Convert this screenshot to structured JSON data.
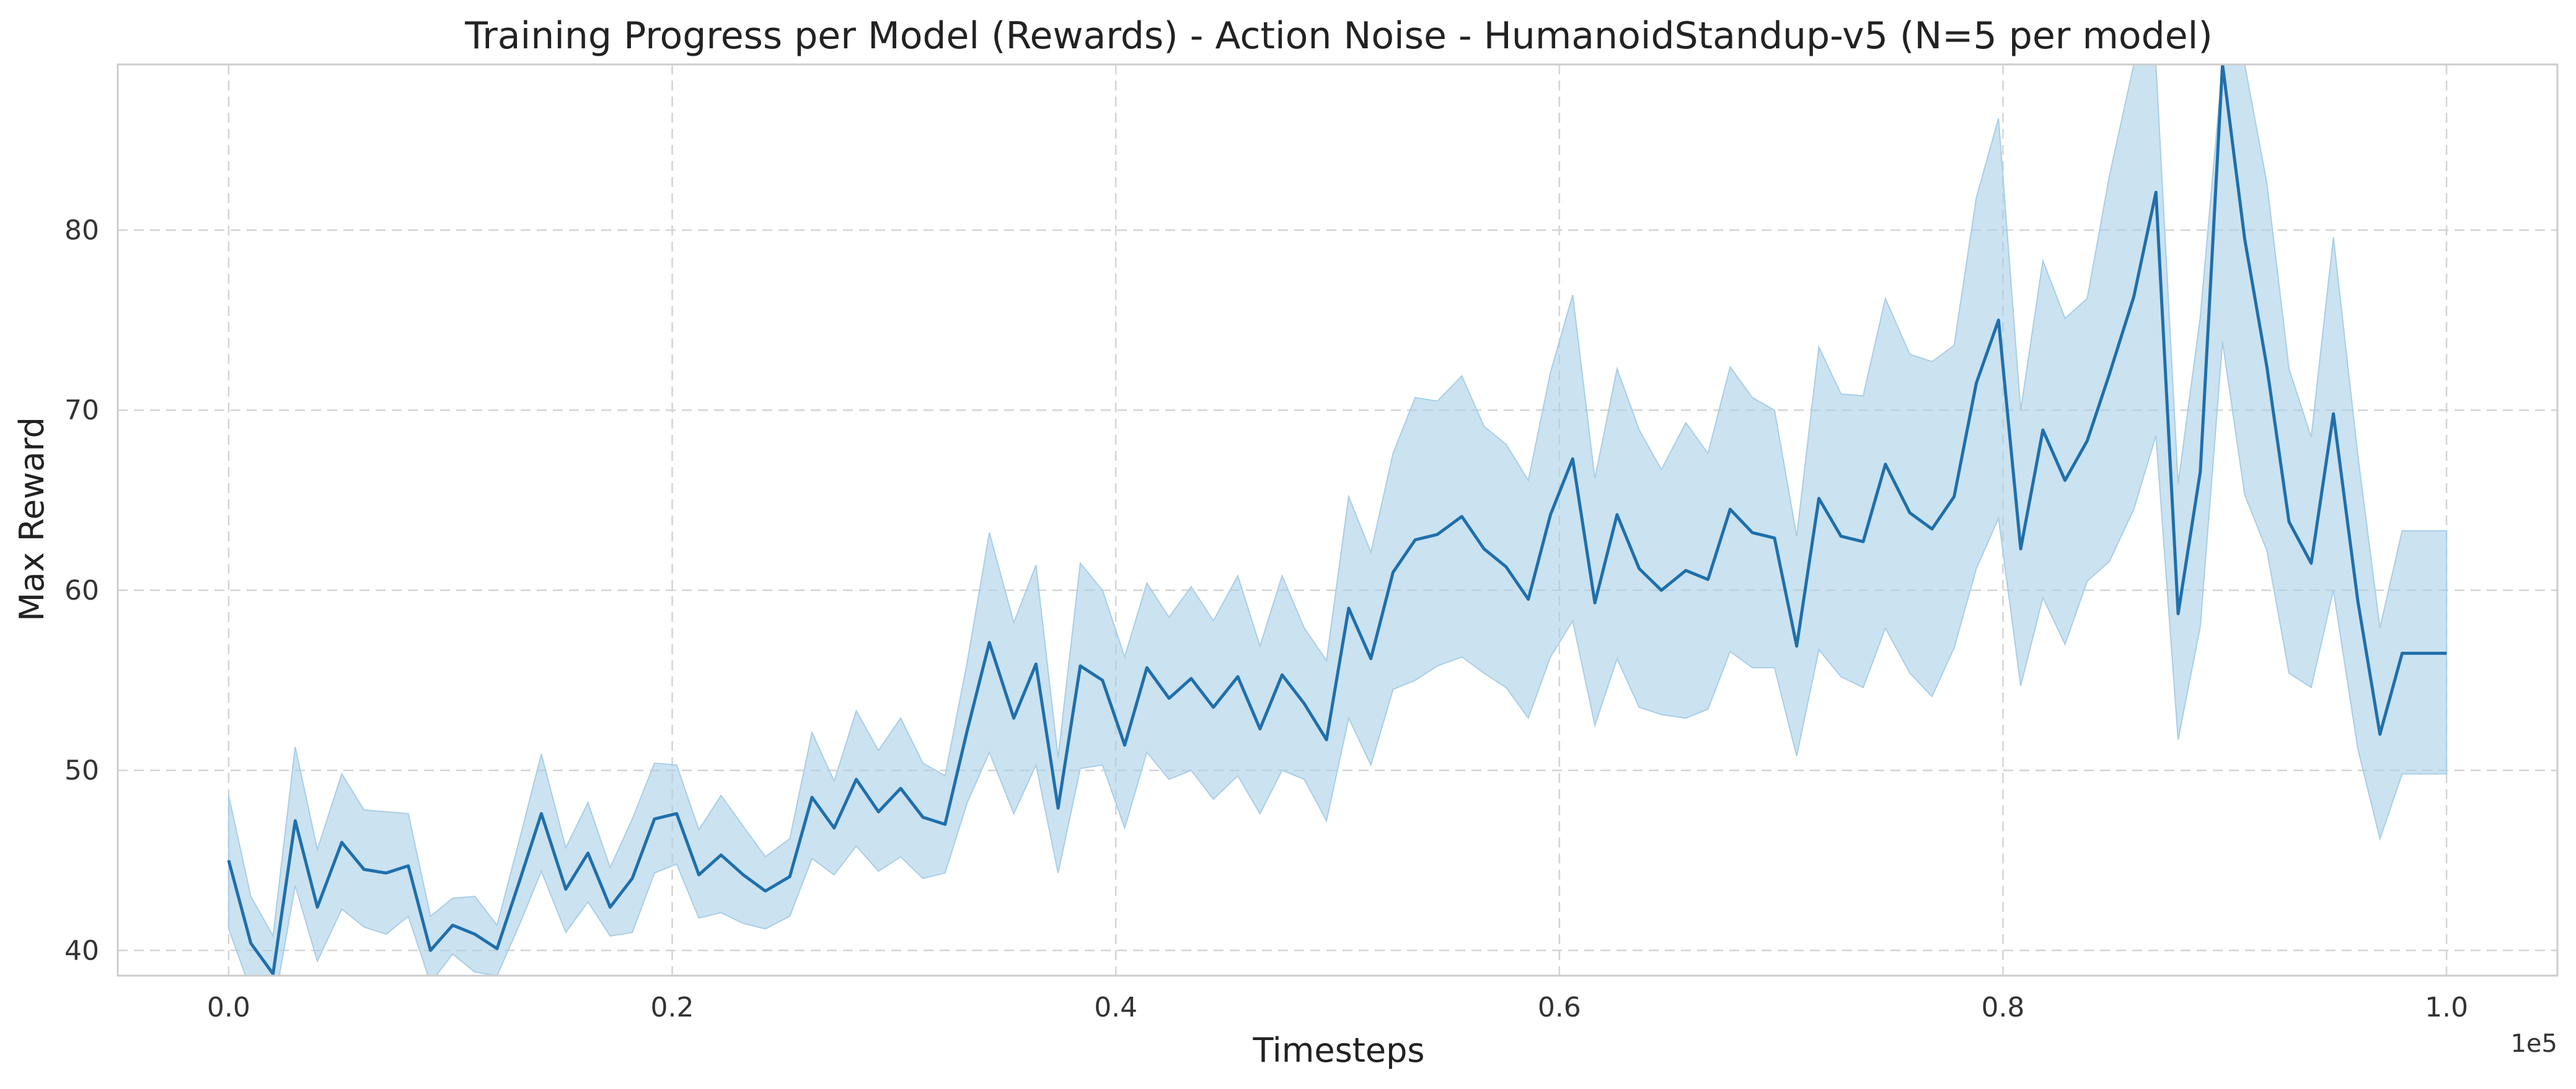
{
  "chart_data": {
    "type": "line",
    "title": "Training Progress per Model (Rewards) - Action Noise - HumanoidStandup-v5 (N=5 per model)",
    "xlabel": "Timesteps",
    "ylabel": "Max Reward",
    "x_offset_label": "1e5",
    "xlim": [
      -0.05,
      1.05
    ],
    "ylim": [
      38.6,
      89.2
    ],
    "x_ticks": [
      0.0,
      0.2,
      0.4,
      0.6,
      0.8,
      1.0
    ],
    "x_tick_labels": [
      "0.0",
      "0.2",
      "0.4",
      "0.6",
      "0.8",
      "1.0"
    ],
    "y_ticks": [
      40,
      50,
      60,
      70,
      80
    ],
    "y_tick_labels": [
      "40",
      "50",
      "60",
      "70",
      "80"
    ],
    "grid": true,
    "line_color": "#1f6fab",
    "band_color": "#a9cee6",
    "series": [
      {
        "x": [
          0.0,
          0.01,
          0.02,
          0.03,
          0.04,
          0.051,
          0.061,
          0.071,
          0.081,
          0.091,
          0.101,
          0.111,
          0.121,
          0.131,
          0.141,
          0.152,
          0.162,
          0.172,
          0.182,
          0.192,
          0.202,
          0.212,
          0.222,
          0.232,
          0.242,
          0.253,
          0.263,
          0.273,
          0.283,
          0.293,
          0.303,
          0.313,
          0.323,
          0.333,
          0.343,
          0.354,
          0.364,
          0.374,
          0.384,
          0.394,
          0.404,
          0.414,
          0.424,
          0.434,
          0.444,
          0.455,
          0.465,
          0.475,
          0.485,
          0.495,
          0.505,
          0.515,
          0.525,
          0.535,
          0.545,
          0.556,
          0.566,
          0.576,
          0.586,
          0.596,
          0.606,
          0.616,
          0.626,
          0.636,
          0.646,
          0.657,
          0.667,
          0.677,
          0.687,
          0.697,
          0.707,
          0.717,
          0.727,
          0.737,
          0.747,
          0.758,
          0.768,
          0.778,
          0.788,
          0.798,
          0.808,
          0.818,
          0.828,
          0.838,
          0.848,
          0.859,
          0.869,
          0.879,
          0.889,
          0.899,
          0.909,
          0.919,
          0.929,
          0.939,
          0.949,
          0.96,
          0.97,
          0.98,
          0.99,
          1.0
        ],
        "mean": [
          45.0,
          40.4,
          38.7,
          47.2,
          42.4,
          46.0,
          44.5,
          44.3,
          44.7,
          40.0,
          41.4,
          40.9,
          40.1,
          43.8,
          47.6,
          43.4,
          45.4,
          42.4,
          44.0,
          47.3,
          47.6,
          44.2,
          45.3,
          44.2,
          43.3,
          44.1,
          48.5,
          46.8,
          49.5,
          47.7,
          49.0,
          47.4,
          47.0,
          52.2,
          57.1,
          52.9,
          55.9,
          47.9,
          55.8,
          55.0,
          51.4,
          55.7,
          54.0,
          55.1,
          53.5,
          55.2,
          52.3,
          55.3,
          53.7,
          51.7,
          59.0,
          56.2,
          61.0,
          62.8,
          63.1,
          64.1,
          62.3,
          61.3,
          59.5,
          64.2,
          67.3,
          59.3,
          64.2,
          61.2,
          60.0,
          61.1,
          60.6,
          64.5,
          63.2,
          62.9,
          56.9,
          65.1,
          63.0,
          62.7,
          67.0,
          64.3,
          63.4,
          65.2,
          71.5,
          75.0,
          62.3,
          68.9,
          66.1,
          68.3,
          72.0,
          76.3,
          82.1,
          58.7,
          66.6,
          89.2,
          79.5,
          72.4,
          63.8,
          61.5,
          69.8,
          59.4,
          52.0,
          56.5,
          56.5,
          56.5
        ],
        "upper": [
          48.6,
          43.0,
          40.8,
          51.3,
          45.6,
          49.8,
          47.8,
          47.7,
          47.6,
          41.9,
          42.9,
          43.0,
          41.4,
          46.1,
          50.9,
          45.7,
          48.2,
          44.6,
          47.3,
          50.4,
          50.3,
          46.7,
          48.6,
          46.9,
          45.2,
          46.2,
          52.1,
          49.4,
          53.3,
          51.1,
          52.9,
          50.4,
          49.7,
          56.0,
          63.2,
          58.2,
          61.4,
          50.7,
          61.5,
          60.0,
          56.3,
          60.4,
          58.5,
          60.2,
          58.3,
          60.8,
          56.9,
          60.8,
          57.9,
          56.1,
          65.2,
          62.1,
          67.6,
          70.7,
          70.5,
          71.9,
          69.1,
          68.1,
          66.1,
          72.1,
          76.4,
          66.2,
          72.3,
          68.9,
          66.7,
          69.3,
          67.6,
          72.4,
          70.7,
          70.0,
          63.0,
          73.5,
          70.9,
          70.8,
          76.2,
          73.1,
          72.7,
          73.6,
          81.8,
          86.2,
          70.0,
          78.3,
          75.1,
          76.2,
          83.0,
          89.2,
          89.2,
          65.9,
          75.2,
          89.2,
          89.2,
          82.6,
          72.3,
          68.5,
          79.6,
          67.5,
          57.9,
          63.3,
          63.3,
          63.3
        ],
        "lower": [
          41.2,
          37.8,
          36.6,
          43.6,
          39.4,
          42.3,
          41.3,
          40.9,
          41.9,
          38.2,
          39.8,
          38.8,
          38.6,
          41.4,
          44.4,
          41.0,
          42.7,
          40.8,
          41.0,
          44.3,
          44.8,
          41.8,
          42.1,
          41.5,
          41.2,
          41.9,
          45.1,
          44.2,
          45.8,
          44.4,
          45.2,
          44.0,
          44.3,
          48.2,
          51.0,
          47.6,
          50.3,
          44.3,
          50.1,
          50.3,
          46.8,
          51.0,
          49.5,
          50.0,
          48.4,
          49.7,
          47.6,
          50.0,
          49.5,
          47.2,
          52.9,
          50.3,
          54.5,
          55.0,
          55.8,
          56.3,
          55.4,
          54.6,
          52.9,
          56.3,
          58.3,
          52.5,
          56.2,
          53.5,
          53.1,
          52.9,
          53.4,
          56.6,
          55.7,
          55.7,
          50.8,
          56.7,
          55.2,
          54.6,
          57.9,
          55.4,
          54.1,
          56.8,
          61.2,
          64.0,
          54.7,
          59.6,
          57.0,
          60.5,
          61.6,
          64.5,
          68.6,
          51.7,
          58.0,
          73.8,
          65.3,
          62.2,
          55.4,
          54.6,
          60.0,
          51.2,
          46.2,
          49.8,
          49.8,
          49.8
        ]
      }
    ]
  }
}
